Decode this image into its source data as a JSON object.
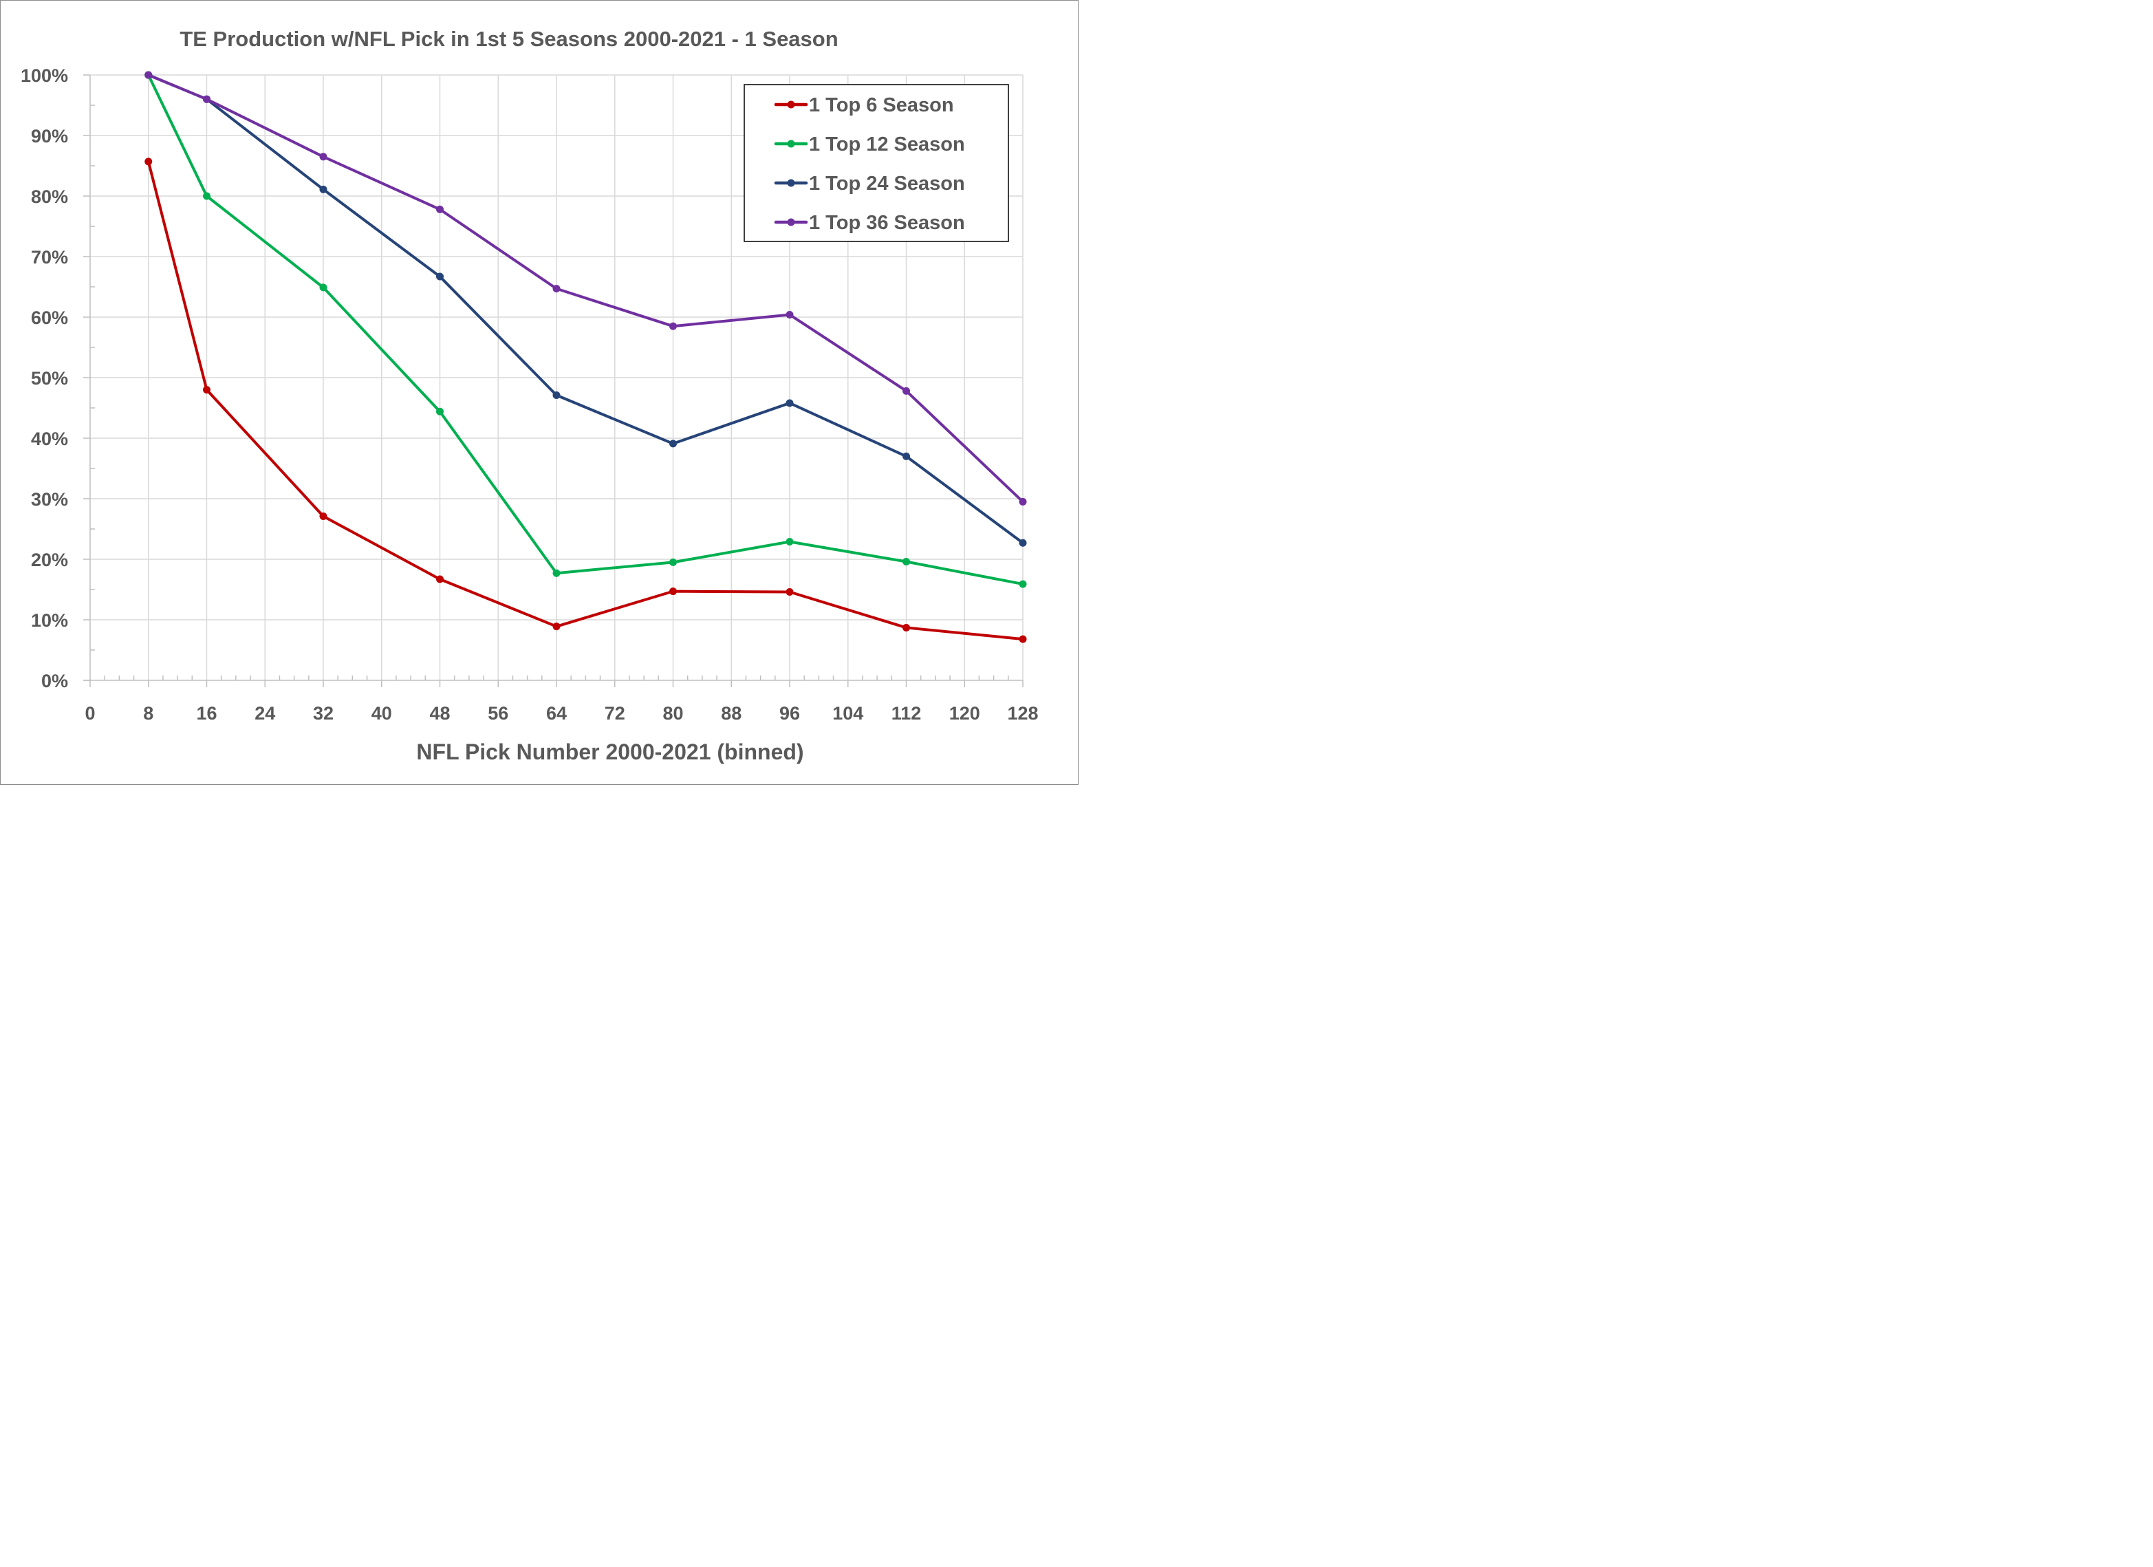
{
  "chart_data": {
    "type": "line",
    "title": "TE Production w/NFL Pick in 1st 5 Seasons 2000-2021 - 1 Season",
    "xlabel": "NFL Pick Number 2000-2021 (binned)",
    "ylabel": "",
    "xlim": [
      0,
      128
    ],
    "ylim": [
      0,
      100
    ],
    "x_ticks": [
      0,
      8,
      16,
      24,
      32,
      40,
      48,
      56,
      64,
      72,
      80,
      88,
      96,
      104,
      112,
      120,
      128
    ],
    "x_tick_labels": [
      "0",
      "8",
      "16",
      "24",
      "32",
      "40",
      "48",
      "56",
      "64",
      "72",
      "80",
      "88",
      "96",
      "104",
      "112",
      "120",
      "128"
    ],
    "y_ticks": [
      0,
      10,
      20,
      30,
      40,
      50,
      60,
      70,
      80,
      90,
      100
    ],
    "y_tick_labels": [
      "0%",
      "10%",
      "20%",
      "30%",
      "40%",
      "50%",
      "60%",
      "70%",
      "80%",
      "90%",
      "100%"
    ],
    "grid": true,
    "legend_position": "top-right",
    "x": [
      8,
      16,
      32,
      48,
      64,
      80,
      96,
      112,
      128
    ],
    "series": [
      {
        "name": "1 Top 6 Season",
        "color": "#c00000",
        "values": [
          85.7,
          48.0,
          27.1,
          16.7,
          8.9,
          14.7,
          14.6,
          8.7,
          6.8
        ]
      },
      {
        "name": "1 Top 12 Season",
        "color": "#00b050",
        "values": [
          100.0,
          80.0,
          64.9,
          44.4,
          17.7,
          19.5,
          22.9,
          19.6,
          15.9
        ]
      },
      {
        "name": "1 Top 24 Season",
        "color": "#264478",
        "values": [
          100.0,
          96.0,
          81.1,
          66.7,
          47.1,
          39.1,
          45.8,
          37.0,
          22.7
        ]
      },
      {
        "name": "1 Top 36 Season",
        "color": "#7030a0",
        "values": [
          100.0,
          96.0,
          86.5,
          77.8,
          64.7,
          58.5,
          60.4,
          47.8,
          29.5
        ]
      }
    ]
  }
}
